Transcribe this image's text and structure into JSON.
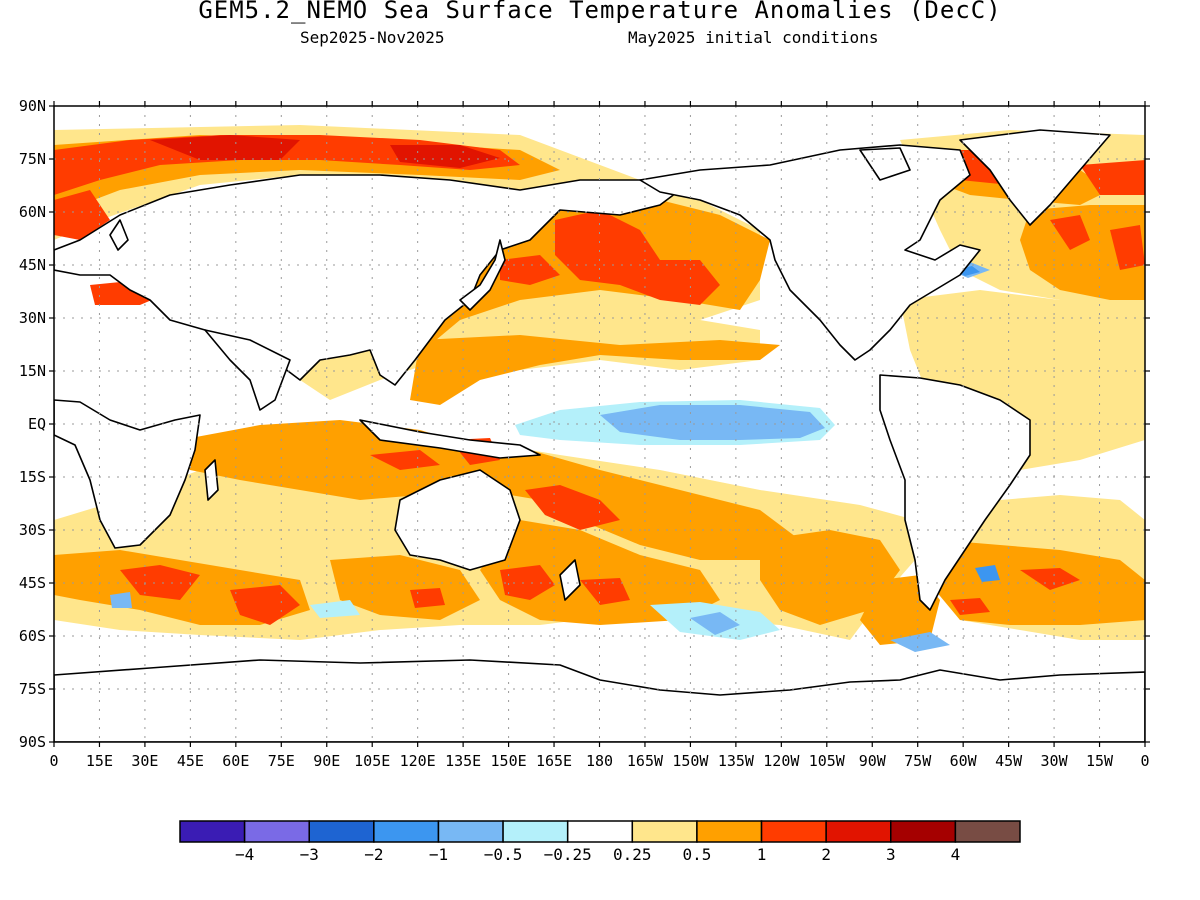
{
  "title": "GEM5.2_NEMO Sea Surface Temperature Anomalies (DecC)",
  "subtitle_period": "Sep2025-Nov2025",
  "subtitle_init": "May2025 initial conditions",
  "lat_labels": [
    "90N",
    "75N",
    "60N",
    "45N",
    "30N",
    "15N",
    "EQ",
    "15S",
    "30S",
    "45S",
    "60S",
    "75S",
    "90S"
  ],
  "lon_labels": [
    "0",
    "15E",
    "30E",
    "45E",
    "60E",
    "75E",
    "90E",
    "105E",
    "120E",
    "135E",
    "150E",
    "165E",
    "180",
    "165W",
    "150W",
    "135W",
    "120W",
    "105W",
    "90W",
    "75W",
    "60W",
    "45W",
    "30W",
    "15W",
    "0"
  ],
  "colorbar": {
    "colors": [
      "#3a1cb4",
      "#7a6ae6",
      "#1e64d2",
      "#3c96f0",
      "#78b8f4",
      "#b4f0fa",
      "#ffffff",
      "#ffe68c",
      "#ffa000",
      "#ff3c00",
      "#e11400",
      "#a50000",
      "#784c44"
    ],
    "labels": [
      "-4",
      "-3",
      "-2",
      "-1",
      "-0.5",
      "-0.25",
      "0.25",
      "0.5",
      "1",
      "2",
      "3",
      "4"
    ]
  },
  "colors": {
    "coast": "#000000",
    "grid": "#9a9a9a"
  }
}
